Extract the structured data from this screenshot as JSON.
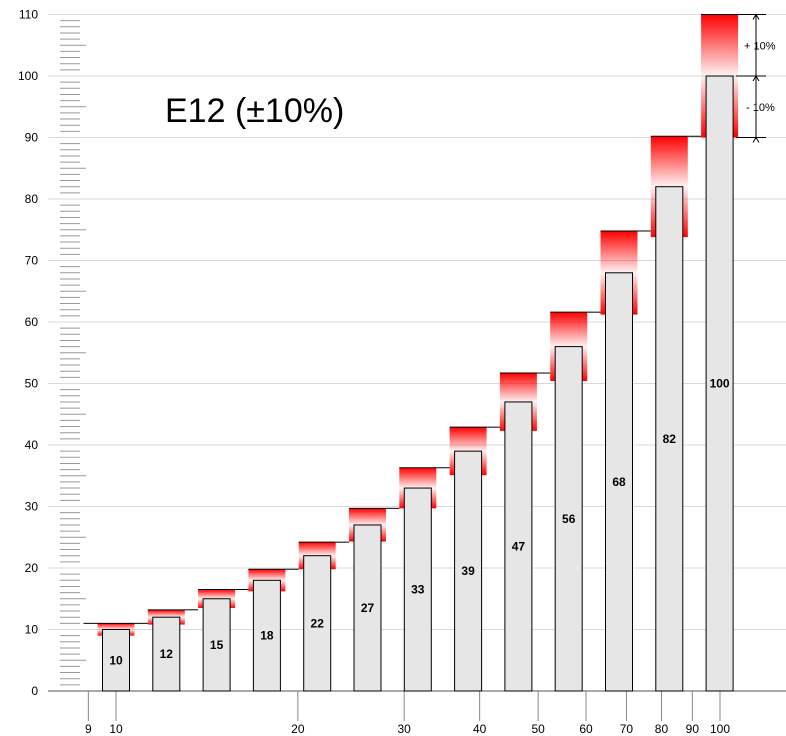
{
  "chart_data": {
    "type": "bar",
    "title": "E12 (±10%)",
    "series": [
      {
        "values": [
          10,
          12,
          15,
          18,
          22,
          27,
          33,
          39,
          47,
          56,
          68,
          82,
          100
        ]
      }
    ],
    "bar_labels": [
      "10",
      "12",
      "15",
      "18",
      "22",
      "27",
      "33",
      "39",
      "47",
      "56",
      "68",
      "82",
      "100"
    ],
    "tolerance_percent": 10,
    "tolerance_labels": {
      "plus": "+ 10%",
      "minus": "- 10%"
    },
    "ylim": [
      0,
      110
    ],
    "yticks": [
      "0",
      "10",
      "20",
      "30",
      "40",
      "50",
      "60",
      "70",
      "80",
      "90",
      "100",
      "110"
    ],
    "x_scale": "log",
    "xlim": [
      9,
      100
    ],
    "xticks": [
      "9",
      "10",
      "20",
      "30",
      "40",
      "50",
      "60",
      "70",
      "80",
      "90",
      "100"
    ],
    "grid": true,
    "colors": {
      "bar_fill": "#e6e6e6",
      "tolerance": "#ff0000",
      "grid": "#d9d9d9"
    }
  }
}
